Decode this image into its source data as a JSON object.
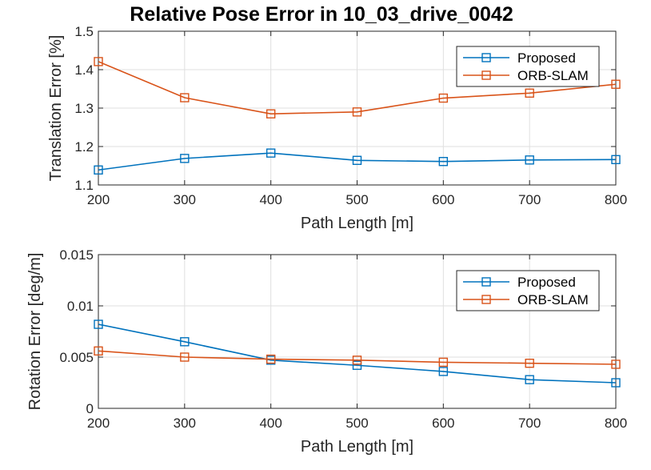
{
  "chart_data": [
    {
      "type": "line",
      "title": "Relative Pose Error in 10_03_drive_0042",
      "xlabel": "Path Length [m]",
      "ylabel": "Translation Error [%]",
      "x": [
        200,
        300,
        400,
        500,
        600,
        700,
        800
      ],
      "xlim": [
        200,
        800
      ],
      "ylim": [
        1.1,
        1.5
      ],
      "xticks": [
        200,
        300,
        400,
        500,
        600,
        700,
        800
      ],
      "xtick_labels": [
        "200",
        "300",
        "400",
        "500",
        "600",
        "700",
        "800"
      ],
      "yticks": [
        1.1,
        1.2,
        1.3,
        1.4,
        1.5
      ],
      "ytick_labels": [
        "1.1",
        "1.2",
        "1.3",
        "1.4",
        "1.5"
      ],
      "grid": true,
      "legend_position": "top-right",
      "series": [
        {
          "name": "Proposed",
          "color": "#0072BD",
          "marker": "square",
          "values": [
            1.139,
            1.169,
            1.183,
            1.164,
            1.161,
            1.165,
            1.166
          ]
        },
        {
          "name": "ORB-SLAM",
          "color": "#D95319",
          "marker": "square",
          "values": [
            1.421,
            1.327,
            1.285,
            1.29,
            1.326,
            1.339,
            1.362
          ]
        }
      ]
    },
    {
      "type": "line",
      "title": "",
      "xlabel": "Path Length [m]",
      "ylabel": "Rotation Error [deg/m]",
      "x": [
        200,
        300,
        400,
        500,
        600,
        700,
        800
      ],
      "xlim": [
        200,
        800
      ],
      "ylim": [
        0,
        0.015
      ],
      "xticks": [
        200,
        300,
        400,
        500,
        600,
        700,
        800
      ],
      "xtick_labels": [
        "200",
        "300",
        "400",
        "500",
        "600",
        "700",
        "800"
      ],
      "yticks": [
        0,
        0.005,
        0.01,
        0.015
      ],
      "ytick_labels": [
        "0",
        "0.005",
        "0.01",
        "0.015"
      ],
      "grid": true,
      "legend_position": "top-right",
      "series": [
        {
          "name": "Proposed",
          "color": "#0072BD",
          "marker": "square",
          "values": [
            0.0082,
            0.0065,
            0.0047,
            0.0042,
            0.0036,
            0.0028,
            0.0025
          ]
        },
        {
          "name": "ORB-SLAM",
          "color": "#D95319",
          "marker": "square",
          "values": [
            0.0056,
            0.005,
            0.0048,
            0.0047,
            0.0045,
            0.0044,
            0.0043
          ]
        }
      ]
    }
  ]
}
